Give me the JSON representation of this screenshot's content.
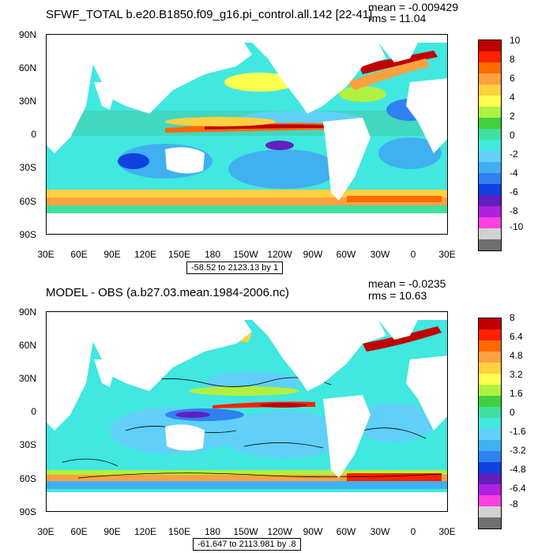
{
  "panels": [
    {
      "title": "SFWF_TOTAL b.e20.B1850.f09_g16.pi_control.all.142 [22-41]",
      "mean": "mean = -0.009429",
      "rms": "rms = 11.04",
      "range": "-58.52 to 2123.13 by 1",
      "lat_labels": [
        "90N",
        "60N",
        "30N",
        "0",
        "30S",
        "60S",
        "90S"
      ],
      "lon_labels": [
        "30E",
        "60E",
        "90E",
        "120E",
        "150E",
        "180",
        "150W",
        "120W",
        "90W",
        "60W",
        "30W",
        "0",
        "30E"
      ],
      "colorbar_labels": [
        "10",
        "8",
        "6",
        "4",
        "2",
        "0",
        "-2",
        "-4",
        "-6",
        "-8",
        "-10"
      ]
    },
    {
      "title": "MODEL - OBS (a.b27.03.mean.1984-2006.nc)",
      "mean": "mean = -0.0235",
      "rms": "rms = 10.63",
      "range": "-61.647 to 2113.981 by .8",
      "lat_labels": [
        "90N",
        "60N",
        "30N",
        "0",
        "30S",
        "60S",
        "90S"
      ],
      "lon_labels": [
        "30E",
        "60E",
        "90E",
        "120E",
        "150E",
        "180",
        "150W",
        "120W",
        "90W",
        "60W",
        "30W",
        "0",
        "30E"
      ],
      "colorbar_labels": [
        "8",
        "6.4",
        "4.8",
        "3.2",
        "1.6",
        "0",
        "-1.6",
        "-3.2",
        "-4.8",
        "-6.4",
        "-8"
      ]
    }
  ],
  "colorbar_colors": [
    "#c00000",
    "#ff2000",
    "#ff6a00",
    "#ffa040",
    "#ffd040",
    "#ffff50",
    "#b0f040",
    "#40d040",
    "#40e0a0",
    "#40e8e0",
    "#60d0f8",
    "#40b0f0",
    "#3080f0",
    "#1040e0",
    "#6020c0",
    "#b020e0",
    "#ff40e0",
    "#d0d0d0",
    "#707070"
  ]
}
